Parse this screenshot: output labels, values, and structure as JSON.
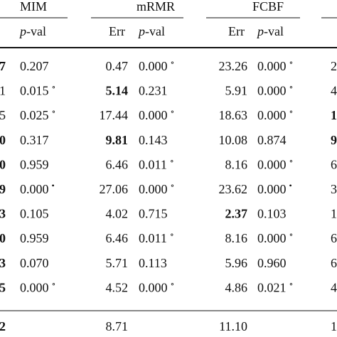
{
  "table": {
    "groups": [
      {
        "label": "MIM",
        "x": 28
      },
      {
        "label": "mRMR",
        "x": 192
      },
      {
        "label": "FCBF",
        "x": 355
      }
    ],
    "subheaders": [
      {
        "label": "p-val",
        "col": 1
      },
      {
        "label": "Err",
        "col": 2
      },
      {
        "label": "p-val",
        "col": 3
      },
      {
        "label": "Err",
        "col": 4
      },
      {
        "label": "p-val",
        "col": 5
      }
    ],
    "rows": [
      {
        "cells": [
          {
            "text": "7",
            "bold": true
          },
          {
            "text": "0.207"
          },
          {
            "text": "0.47"
          },
          {
            "text": "0.000",
            "sup": "∘"
          },
          {
            "text": "23.26"
          },
          {
            "text": "0.000",
            "sup": "∘"
          },
          {
            "text": "2"
          }
        ]
      },
      {
        "cells": [
          {
            "text": "1"
          },
          {
            "text": "0.015",
            "sup": "∘"
          },
          {
            "text": "5.14",
            "bold": true
          },
          {
            "text": "0.231"
          },
          {
            "text": "5.91"
          },
          {
            "text": "0.000",
            "sup": "∘"
          },
          {
            "text": "4"
          }
        ]
      },
      {
        "cells": [
          {
            "text": "5"
          },
          {
            "text": "0.025",
            "sup": "∘"
          },
          {
            "text": "17.44"
          },
          {
            "text": "0.000",
            "sup": "∘"
          },
          {
            "text": "18.63"
          },
          {
            "text": "0.000",
            "sup": "∘"
          },
          {
            "text": "1",
            "bold": true
          }
        ]
      },
      {
        "cells": [
          {
            "text": "0",
            "bold": true
          },
          {
            "text": "0.317"
          },
          {
            "text": "9.81",
            "bold": true
          },
          {
            "text": "0.143"
          },
          {
            "text": "10.08"
          },
          {
            "text": "0.874"
          },
          {
            "text": "9",
            "bold": true
          }
        ]
      },
      {
        "cells": [
          {
            "text": "0",
            "bold": true
          },
          {
            "text": "0.959"
          },
          {
            "text": "6.46"
          },
          {
            "text": "0.011",
            "sup": "∘"
          },
          {
            "text": "8.16"
          },
          {
            "text": "0.000",
            "sup": "∘"
          },
          {
            "text": "6"
          }
        ]
      },
      {
        "cells": [
          {
            "text": "9",
            "bold": true
          },
          {
            "text": "0.000",
            "sup": "•"
          },
          {
            "text": "27.06"
          },
          {
            "text": "0.000",
            "sup": "∘"
          },
          {
            "text": "23.62"
          },
          {
            "text": "0.000",
            "sup": "•"
          },
          {
            "text": "3"
          }
        ]
      },
      {
        "cells": [
          {
            "text": "3",
            "bold": true
          },
          {
            "text": "0.105"
          },
          {
            "text": "4.02"
          },
          {
            "text": "0.715"
          },
          {
            "text": "2.37",
            "bold": true
          },
          {
            "text": "0.103"
          },
          {
            "text": "1"
          }
        ]
      },
      {
        "cells": [
          {
            "text": "0",
            "bold": true
          },
          {
            "text": "0.959"
          },
          {
            "text": "6.46"
          },
          {
            "text": "0.011",
            "sup": "∘"
          },
          {
            "text": "8.16"
          },
          {
            "text": "0.000",
            "sup": "∘"
          },
          {
            "text": "6"
          }
        ]
      },
      {
        "cells": [
          {
            "text": "3",
            "bold": true
          },
          {
            "text": "0.070"
          },
          {
            "text": "5.71"
          },
          {
            "text": "0.113"
          },
          {
            "text": "5.96"
          },
          {
            "text": "0.960"
          },
          {
            "text": "6"
          }
        ]
      },
      {
        "cells": [
          {
            "text": "5",
            "bold": true
          },
          {
            "text": "0.000",
            "sup": "∘"
          },
          {
            "text": "4.52"
          },
          {
            "text": "0.000",
            "sup": "∘"
          },
          {
            "text": "4.86"
          },
          {
            "text": "0.021",
            "sup": "∘"
          },
          {
            "text": "4"
          }
        ]
      },
      {
        "cells": [
          {
            "text": "2",
            "bold": true
          },
          null,
          {
            "text": "8.71"
          },
          null,
          {
            "text": "11.10"
          },
          null,
          {
            "text": "1"
          }
        ]
      }
    ]
  }
}
